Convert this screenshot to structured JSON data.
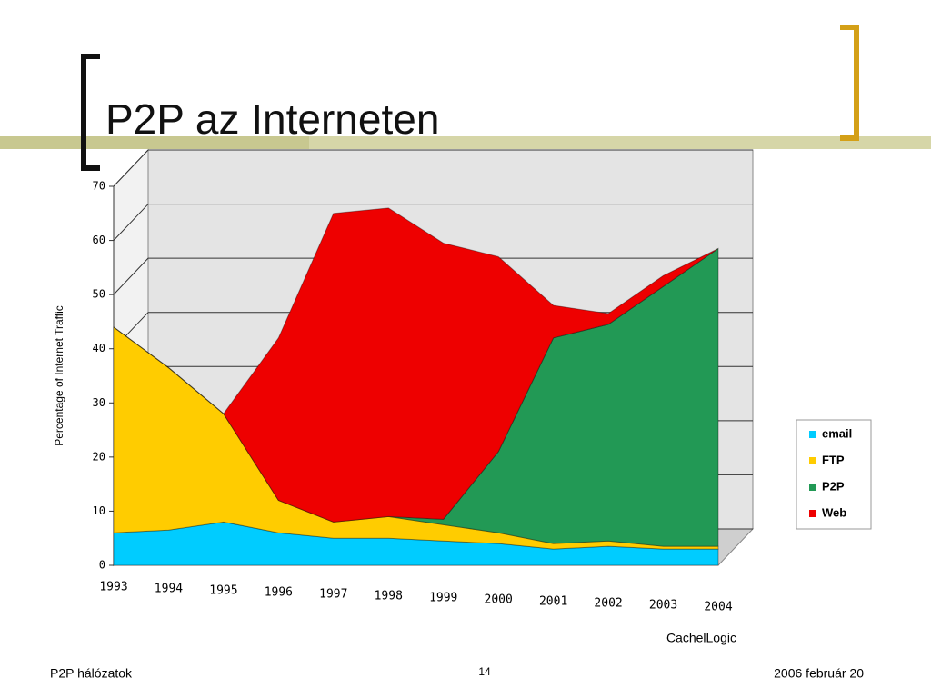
{
  "slide": {
    "title": "P2P az Interneten",
    "footer_left": "P2P hálózatok",
    "page_number": "14",
    "footer_right": "2006 február 20"
  },
  "chart_data": {
    "type": "stacked-area",
    "y_label": "Percentage of Internet Traffic",
    "source": "CachelLogic",
    "categories": [
      "1993",
      "1994",
      "1995",
      "1996",
      "1997",
      "1998",
      "1999",
      "2000",
      "2001",
      "2002",
      "2003",
      "2004"
    ],
    "series": [
      {
        "name": "email",
        "color": "#00ccff",
        "values": [
          6,
          6.5,
          8,
          6,
          5,
          5,
          4.5,
          4,
          3,
          3.5,
          3,
          3
        ]
      },
      {
        "name": "FTP",
        "color": "#ffcc00",
        "values": [
          38,
          30,
          20,
          6,
          3,
          4,
          3,
          2,
          1,
          1,
          0.5,
          0.5
        ]
      },
      {
        "name": "P2P",
        "color": "#229955",
        "values": [
          0,
          0,
          0,
          0,
          0,
          0,
          1,
          15,
          38,
          40,
          48,
          55
        ]
      },
      {
        "name": "Web",
        "color": "#ee0000",
        "values": [
          0,
          0,
          0,
          30,
          57,
          57,
          51,
          36,
          6,
          2,
          2,
          0
        ]
      }
    ],
    "ylim": [
      0,
      70
    ],
    "yticks": [
      0,
      10,
      20,
      30,
      40,
      50,
      60,
      70
    ],
    "grid": true,
    "legend": "right"
  }
}
